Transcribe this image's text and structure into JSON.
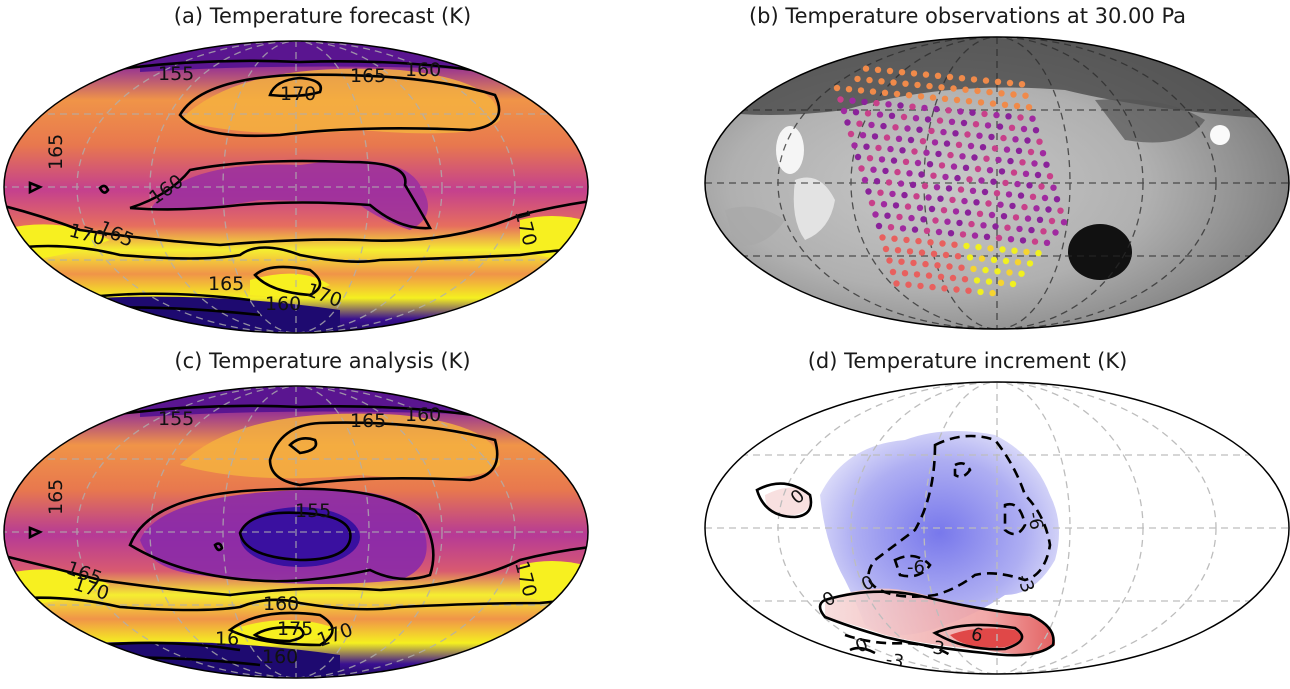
{
  "figure": {
    "panels": [
      {
        "id": "a",
        "title": "(a) Temperature forecast (K)",
        "contour_labels": [
          "155",
          "165",
          "160",
          "170",
          "165",
          "160",
          "170",
          "165",
          "170",
          "165",
          "160",
          "155"
        ]
      },
      {
        "id": "b",
        "title": "(b) Temperature observations at 30.00 Pa"
      },
      {
        "id": "c",
        "title": "(c) Temperature analysis (K)",
        "contour_labels": [
          "155",
          "165",
          "160",
          "165",
          "155",
          "165",
          "170",
          "160",
          "170",
          "175",
          "170",
          "160",
          "16"
        ]
      },
      {
        "id": "d",
        "title": "(d) Temperature increment (K)",
        "contour_labels": [
          "0",
          "-6",
          "0",
          "-6",
          "-3",
          "0",
          "6",
          "3",
          "-3",
          "0"
        ]
      }
    ],
    "colors": {
      "cold": "#1a0a5e",
      "cool": "#7b2a9e",
      "mid": "#d4488a",
      "warm": "#f2843a",
      "hot": "#f5f518",
      "increment_negative": "#4a4ae8",
      "increment_positive": "#e04040"
    }
  }
}
